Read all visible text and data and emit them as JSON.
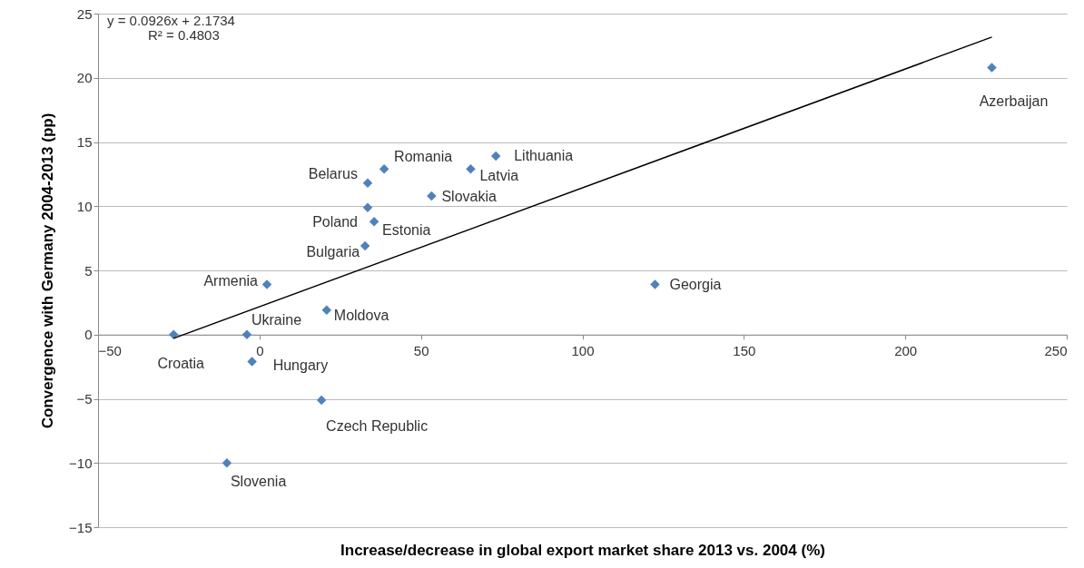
{
  "chart_data": {
    "type": "scatter",
    "xlabel": "Increase/decrease in global export market share 2013 vs. 2004 (%)",
    "ylabel": "Convergence with Germany 2004-2013 (pp)",
    "xlim": [
      -50,
      250
    ],
    "xticks": [
      -50,
      0,
      50,
      100,
      150,
      200,
      250
    ],
    "ylim": [
      -15,
      25
    ],
    "yticks": [
      -15,
      -10,
      -5,
      0,
      5,
      10,
      15,
      20,
      25
    ],
    "grid": "y",
    "series": [
      {
        "color": "#4f81bd",
        "marker": "diamond",
        "x": [
          -26.6,
          -3.9,
          -2.3,
          -10.1,
          2.3,
          20.8,
          19.2,
          32.7,
          33.5,
          35.5,
          33.5,
          38.6,
          53.3,
          65.4,
          73.2,
          122.5,
          226.8
        ],
        "values": [
          0,
          0,
          -2.1,
          -10,
          3.9,
          1.9,
          -5.1,
          6.9,
          9.9,
          8.8,
          11.8,
          12.9,
          10.8,
          12.9,
          13.9,
          3.9,
          20.8
        ]
      },
      {
        "type": "line",
        "color": "#000000",
        "marker": "none",
        "line_style": "solid",
        "x": [
          -26.6,
          226.8
        ],
        "values": [
          -0.29,
          23.17
        ]
      }
    ],
    "annotations": [
      {
        "text": "Croatia",
        "x": -26.6,
        "y": 0
      },
      {
        "text": "Ukraine",
        "x": -3.9,
        "y": 0
      },
      {
        "text": "Hungary",
        "x": -2.3,
        "y": -2.1
      },
      {
        "text": "Slovenia",
        "x": -10.1,
        "y": -10
      },
      {
        "text": "Armenia",
        "x": 2.3,
        "y": 3.9
      },
      {
        "text": "Moldova",
        "x": 20.8,
        "y": 1.9
      },
      {
        "text": "Czech Republic",
        "x": 19.2,
        "y": -5.1
      },
      {
        "text": "Bulgaria",
        "x": 32.7,
        "y": 6.9
      },
      {
        "text": "Poland",
        "x": 33.5,
        "y": 9.9
      },
      {
        "text": "Estonia",
        "x": 35.5,
        "y": 8.8
      },
      {
        "text": "Belarus",
        "x": 33.5,
        "y": 11.8
      },
      {
        "text": "Romania",
        "x": 38.6,
        "y": 12.9
      },
      {
        "text": "Slovakia",
        "x": 53.3,
        "y": 10.8
      },
      {
        "text": "Latvia",
        "x": 65.4,
        "y": 12.9
      },
      {
        "text": "Lithuania",
        "x": 73.2,
        "y": 13.9
      },
      {
        "text": "Georgia",
        "x": 122.5,
        "y": 3.9
      },
      {
        "text": "Azerbaijan",
        "x": 226.8,
        "y": 20.8
      },
      "y = 0.0926x + 2.1734",
      "R² = 0.4803"
    ]
  }
}
